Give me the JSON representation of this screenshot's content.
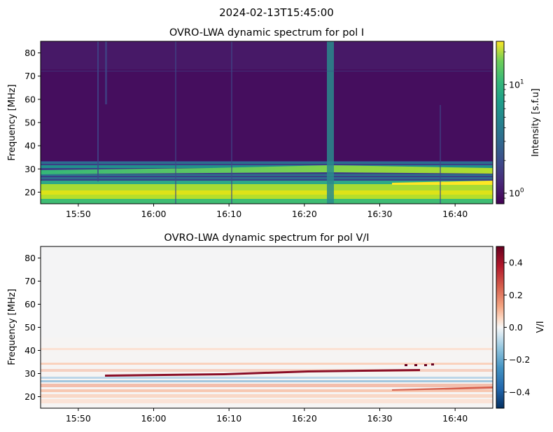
{
  "figure": {
    "suptitle": "2024-02-13T15:45:00"
  },
  "chart_data": [
    {
      "type": "heatmap",
      "title": "OVRO-LWA dynamic spectrum for pol I",
      "xlabel": "",
      "ylabel": "Frequency [MHz]",
      "x_ticks": [
        "15:50",
        "16:00",
        "16:10",
        "16:20",
        "16:30",
        "16:40"
      ],
      "x_tick_minutes": [
        5,
        15,
        25,
        35,
        45,
        55
      ],
      "xlim_minutes": [
        0,
        60
      ],
      "xlim": [
        "15:45",
        "16:45"
      ],
      "ylim": [
        15,
        85
      ],
      "y_ticks": [
        20,
        30,
        40,
        50,
        60,
        70,
        80
      ],
      "colormap": "viridis",
      "color_scale": "log",
      "colorbar": {
        "label": "Intensity [s.f.u]",
        "range": [
          0.8,
          25
        ],
        "ticks": [
          "10^0",
          "10^1"
        ],
        "tick_values": [
          1,
          10
        ]
      },
      "features": [
        {
          "name": "low-frequency bright band",
          "freq_range": [
            16,
            24
          ],
          "level": "high"
        },
        {
          "name": "drifting band",
          "freq_start": 28,
          "freq_end": 31,
          "time_range": [
            "15:45",
            "16:45"
          ]
        },
        {
          "name": "broadband burst",
          "time": "16:23",
          "freq_range": [
            15,
            85
          ]
        }
      ]
    },
    {
      "type": "heatmap",
      "title": "OVRO-LWA dynamic spectrum for pol V/I",
      "xlabel": "",
      "ylabel": "Frequency [MHz]",
      "x_ticks": [
        "15:50",
        "16:00",
        "16:10",
        "16:20",
        "16:30",
        "16:40"
      ],
      "x_tick_minutes": [
        5,
        15,
        25,
        35,
        45,
        55
      ],
      "xlim_minutes": [
        0,
        60
      ],
      "xlim": [
        "15:45",
        "16:45"
      ],
      "ylim": [
        15,
        85
      ],
      "y_ticks": [
        20,
        30,
        40,
        50,
        60,
        70,
        80
      ],
      "colormap": "RdBu_r",
      "color_scale": "linear",
      "colorbar": {
        "label": "V/I",
        "range": [
          -0.5,
          0.5
        ],
        "ticks": [
          "−0.4",
          "−0.2",
          "0.0",
          "0.2",
          "0.4"
        ],
        "tick_values": [
          -0.4,
          -0.2,
          0.0,
          0.2,
          0.4
        ]
      },
      "features": [
        {
          "name": "positive drifting streak",
          "freq_start": 29,
          "freq_end": 32,
          "time_range": [
            "15:55",
            "16:35"
          ],
          "value": 0.45
        },
        {
          "name": "negative band",
          "freq_range": [
            27,
            29
          ],
          "value": -0.3
        },
        {
          "name": "mixed low-frequency structure",
          "freq_range": [
            20,
            26
          ],
          "value": 0.2
        }
      ]
    }
  ]
}
